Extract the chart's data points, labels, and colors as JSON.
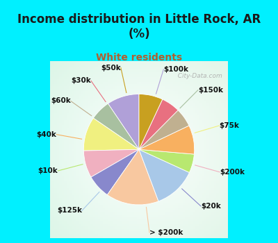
{
  "title": "Income distribution in Little Rock, AR\n(%)",
  "subtitle": "White residents",
  "title_color": "#1a1a1a",
  "subtitle_color": "#b06030",
  "bg_cyan": "#00f0ff",
  "chart_bg_top_left": "#d0ede0",
  "chart_bg_center": "#f0faf8",
  "labels": [
    "$100k",
    "$150k",
    "$75k",
    "$200k",
    "$20k",
    "> $200k",
    "$125k",
    "$10k",
    "$40k",
    "$60k",
    "$30k",
    "$50k"
  ],
  "values": [
    9.5,
    6.0,
    10.0,
    8.0,
    7.0,
    15.5,
    12.5,
    5.5,
    8.5,
    5.5,
    5.5,
    7.0
  ],
  "colors": [
    "#b0a0d8",
    "#a8c0a0",
    "#f0f080",
    "#f0b0c0",
    "#8888cc",
    "#f8c8a0",
    "#a8c8e8",
    "#b8e870",
    "#f8b060",
    "#c0b090",
    "#e87080",
    "#c8a020"
  ],
  "startangle": 90,
  "label_fontsize": 7.5,
  "title_fontsize": 12,
  "subtitle_fontsize": 10,
  "watermark": "  City-Data.com"
}
